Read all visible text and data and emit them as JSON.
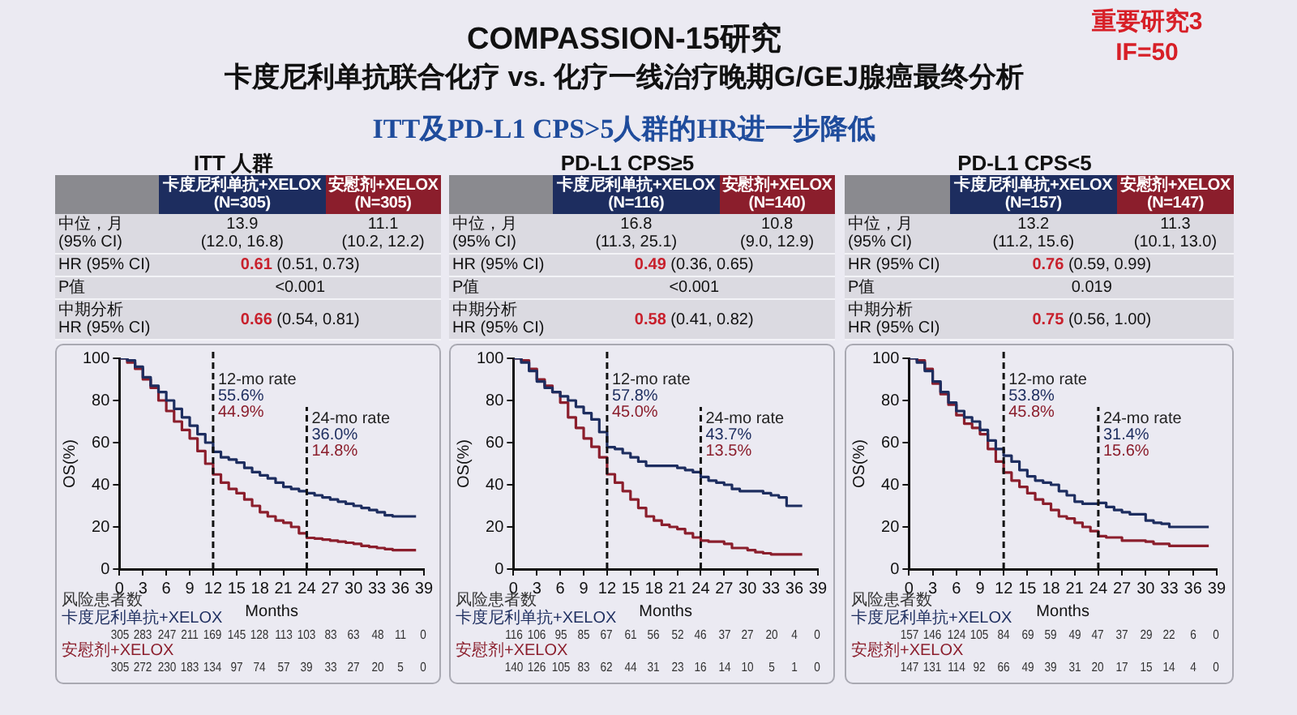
{
  "chart_data": [
    {
      "type": "other",
      "title": "COMPASSION-15研究",
      "subtitle": "卡度尼利单抗联合化疗 vs. 化疗一线治疗晚期G/GEJ腺癌最终分析",
      "annotations": [
        "ITT及PD-L1 CPS>5人群的HR进一步降低",
        "重要研究3",
        "IF=50"
      ]
    },
    {
      "type": "step",
      "title": "ITT 人群",
      "xlabel": "Months",
      "ylabel": "OS(%)",
      "legend": "bottom left",
      "grid": false,
      "x": [
        0,
        1,
        2,
        3,
        4,
        5,
        6,
        7,
        8,
        9,
        10,
        11,
        12,
        13,
        14,
        15,
        16,
        17,
        18,
        19,
        20,
        21,
        22,
        23,
        24,
        25,
        26,
        27,
        28,
        29,
        30,
        31,
        32,
        33,
        34,
        35,
        36,
        37,
        38
      ],
      "xlim": [
        0,
        39
      ],
      "xticks": [
        0,
        3,
        6,
        9,
        12,
        15,
        18,
        21,
        24,
        27,
        30,
        33,
        36,
        39
      ],
      "ylim": [
        0,
        100
      ],
      "yticks": [
        0,
        20,
        40,
        60,
        80,
        100
      ],
      "series": [
        {
          "name": "卡度尼利单抗+XELOX",
          "color": "#1d2d5f",
          "values": [
            100,
            99,
            96,
            91,
            87,
            84,
            80,
            76,
            72,
            68,
            64,
            60,
            55.6,
            53,
            52,
            50.5,
            48,
            46,
            44.5,
            43,
            41,
            39,
            38,
            37,
            36.0,
            35,
            34,
            33,
            32,
            31,
            30,
            29,
            28,
            27,
            25.5,
            25,
            25,
            25,
            25
          ]
        },
        {
          "name": "安慰剂+XELOX",
          "color": "#8b1e2c",
          "values": [
            100,
            98,
            95,
            90,
            86,
            80,
            75,
            70,
            66,
            62,
            56,
            50,
            44.9,
            41,
            38,
            36,
            33,
            30,
            27,
            25,
            23,
            22,
            20,
            17,
            14.8,
            14.5,
            14,
            13.5,
            13,
            12.5,
            12,
            11,
            10.5,
            10,
            9.5,
            9,
            9,
            9,
            9
          ]
        }
      ],
      "ref_lines": [
        {
          "axis": "x",
          "value": 12,
          "label": "12-mo rate",
          "color": "#111111",
          "line_style": "dashed"
        },
        {
          "axis": "x",
          "value": 24,
          "label": "24-mo rate",
          "color": "#111111",
          "line_style": "dashed"
        }
      ],
      "annotations": [
        "(N=305)",
        "(N=305)",
        "中位，月\n(95% CI)",
        "13.9\n(12.0, 16.8)",
        "11.1\n(10.2, 12.2)",
        "HR (95% CI)",
        "0.61 (0.51, 0.73)",
        "P值",
        "<0.001",
        "中期分析\nHR (95% CI)",
        "0.66 (0.54, 0.81)",
        "风险患者数",
        "305 283 247 211 169 145 128 113 103 83 63 48 11 0",
        "305 272 230 183 134 97 74 57 39 33 27 20 5 0",
        "55.6%",
        "44.9%",
        "36.0%",
        "14.8%"
      ]
    },
    {
      "type": "step",
      "title": "PD-L1 CPS≥5",
      "xlabel": "Months",
      "ylabel": "OS(%)",
      "legend": "bottom left",
      "grid": false,
      "x": [
        0,
        1,
        2,
        3,
        4,
        5,
        6,
        7,
        8,
        9,
        10,
        11,
        12,
        13,
        14,
        15,
        16,
        17,
        18,
        19,
        20,
        21,
        22,
        23,
        24,
        25,
        26,
        27,
        28,
        29,
        30,
        31,
        32,
        33,
        34,
        35,
        36,
        37
      ],
      "xlim": [
        0,
        39
      ],
      "xticks": [
        0,
        3,
        6,
        9,
        12,
        15,
        18,
        21,
        24,
        27,
        30,
        33,
        36,
        39
      ],
      "ylim": [
        0,
        100
      ],
      "yticks": [
        0,
        20,
        40,
        60,
        80,
        100
      ],
      "series": [
        {
          "name": "卡度尼利单抗+XELOX",
          "color": "#1d2d5f",
          "values": [
            100,
            98,
            94,
            89,
            86,
            84,
            82,
            80,
            77,
            74,
            71,
            65,
            57.8,
            57,
            55,
            53,
            51,
            49,
            49,
            49,
            49,
            48,
            47,
            46,
            43.7,
            42,
            41,
            40,
            38,
            37,
            37,
            37,
            36,
            35,
            34,
            30,
            30,
            30
          ]
        },
        {
          "name": "安慰剂+XELOX",
          "color": "#8b1e2c",
          "values": [
            100,
            99,
            95,
            90,
            87,
            84,
            79,
            72,
            67,
            62,
            58,
            53,
            45.0,
            41,
            37,
            33,
            29,
            25,
            23,
            21,
            20,
            19,
            17,
            15,
            13.5,
            13,
            13,
            12,
            10,
            10,
            9,
            8,
            7.5,
            7,
            7,
            7,
            7,
            7
          ]
        }
      ],
      "ref_lines": [
        {
          "axis": "x",
          "value": 12,
          "label": "12-mo rate",
          "color": "#111111",
          "line_style": "dashed"
        },
        {
          "axis": "x",
          "value": 24,
          "label": "24-mo rate",
          "color": "#111111",
          "line_style": "dashed"
        }
      ],
      "annotations": [
        "(N=116)",
        "(N=140)",
        "中位，月\n(95% CI)",
        "16.8\n(11.3, 25.1)",
        "10.8\n(9.0, 12.9)",
        "HR (95% CI)",
        "0.49 (0.36, 0.65)",
        "P值",
        "<0.001",
        "中期分析\nHR (95% CI)",
        "0.58 (0.41, 0.82)",
        "风险患者数",
        "116 106 95 85 67 61 56 52 46 37 27 20 4 0",
        "140 126 105 83 62 44 31 23 16 14 10 5 1 0",
        "57.8%",
        "45.0%",
        "43.7%",
        "13.5%"
      ]
    },
    {
      "type": "step",
      "title": "PD-L1 CPS<5",
      "xlabel": "Months",
      "ylabel": "OS(%)",
      "legend": "bottom left",
      "grid": false,
      "x": [
        0,
        1,
        2,
        3,
        4,
        5,
        6,
        7,
        8,
        9,
        10,
        11,
        12,
        13,
        14,
        15,
        16,
        17,
        18,
        19,
        20,
        21,
        22,
        23,
        24,
        25,
        26,
        27,
        28,
        29,
        30,
        31,
        32,
        33,
        34,
        35,
        36,
        37,
        38
      ],
      "xlim": [
        0,
        39
      ],
      "xticks": [
        0,
        3,
        6,
        9,
        12,
        15,
        18,
        21,
        24,
        27,
        30,
        33,
        36,
        39
      ],
      "ylim": [
        0,
        100
      ],
      "yticks": [
        0,
        20,
        40,
        60,
        80,
        100
      ],
      "series": [
        {
          "name": "卡度尼利单抗+XELOX",
          "color": "#1d2d5f",
          "values": [
            100,
            98,
            94,
            89,
            84,
            79,
            75,
            72,
            70,
            66,
            61,
            57,
            53.8,
            51,
            47,
            44,
            42,
            41,
            40,
            37,
            35,
            32,
            31,
            31,
            31.4,
            29.5,
            28,
            27,
            26,
            26,
            23,
            22,
            21.5,
            20,
            20,
            20,
            20,
            20,
            20
          ]
        },
        {
          "name": "安慰剂+XELOX",
          "color": "#8b1e2c",
          "values": [
            100,
            99,
            95,
            88,
            83,
            78,
            73,
            69,
            67,
            64,
            57,
            51,
            45.8,
            42,
            39,
            36,
            33,
            31,
            28,
            25,
            24,
            22,
            20,
            18,
            15.6,
            15,
            15,
            13.5,
            13.5,
            13.5,
            13,
            12,
            12,
            11,
            11,
            11,
            11,
            11,
            11
          ]
        }
      ],
      "ref_lines": [
        {
          "axis": "x",
          "value": 12,
          "label": "12-mo rate",
          "color": "#111111",
          "line_style": "dashed"
        },
        {
          "axis": "x",
          "value": 24,
          "label": "24-mo rate",
          "color": "#111111",
          "line_style": "dashed"
        }
      ],
      "annotations": [
        "(N=157)",
        "(N=147)",
        "中位，月\n(95% CI)",
        "13.2\n(11.2, 15.6)",
        "11.3\n(10.1, 13.0)",
        "HR (95% CI)",
        "0.76 (0.59, 0.99)",
        "P值",
        "0.019",
        "中期分析\nHR (95% CI)",
        "0.75 (0.56, 1.00)",
        "风险患者数",
        "157 146 124 105 84 69 59 49 47 37 29 22 6 0",
        "147 131 114 92 66 49 39 31 20 17 15 14 4 0",
        "53.8%",
        "45.8%",
        "31.4%",
        "15.6%"
      ]
    }
  ]
}
